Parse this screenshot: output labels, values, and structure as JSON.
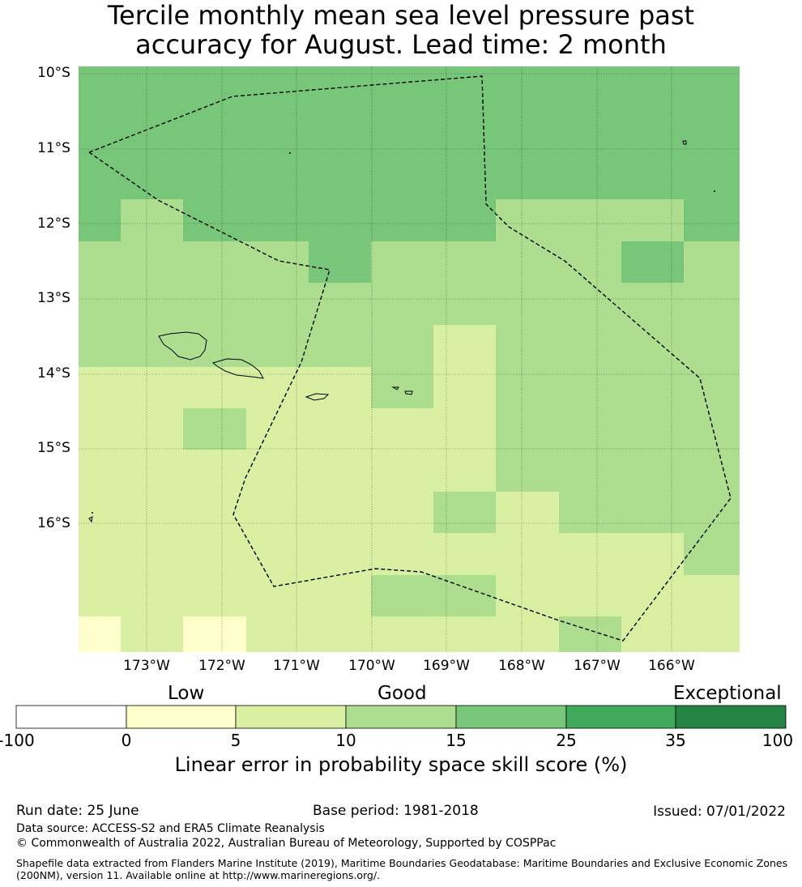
{
  "title": {
    "line1": "Tercile monthly mean sea level pressure past",
    "line2": "accuracy for August. Lead time: 2 month"
  },
  "map": {
    "lat_labels": [
      "10°S",
      "11°S",
      "12°S",
      "13°S",
      "14°S",
      "15°S",
      "16°S"
    ],
    "lon_labels": [
      "173°W",
      "172°W",
      "171°W",
      "170°W",
      "169°W",
      "168°W",
      "167°W",
      "166°W"
    ]
  },
  "legend": {
    "categories": [
      "Low",
      "Good",
      "Exceptional"
    ],
    "ticks": [
      "-100",
      "0",
      "5",
      "10",
      "15",
      "25",
      "35",
      "100"
    ],
    "colors": [
      "#ffffff",
      "#ffffcc",
      "#d9f0a3",
      "#addd8e",
      "#78c679",
      "#41ab5d",
      "#238443"
    ],
    "label": "Linear error in probability space skill score (%)"
  },
  "footer": {
    "run_date": "Run date: 25 June",
    "base_period": "Base period: 1981-2018",
    "issued": "Issued: 07/01/2022",
    "data_source": "Data source: ACCESS-S2 and ERA5 Climate Reanalysis",
    "copyright": "© Commonwealth of Australia 2022, Australian Bureau of Meteorology, Supported by COSPPac",
    "shapefile_line1": "Shapefile data extracted from Flanders Marine Institute (2019), Maritime Boundaries Geodatabase: Maritime Boundaries and Exclusive Economic Zones",
    "shapefile_line2": "(200NM), version 11. Available online at http://www.marineregions.org/."
  }
}
